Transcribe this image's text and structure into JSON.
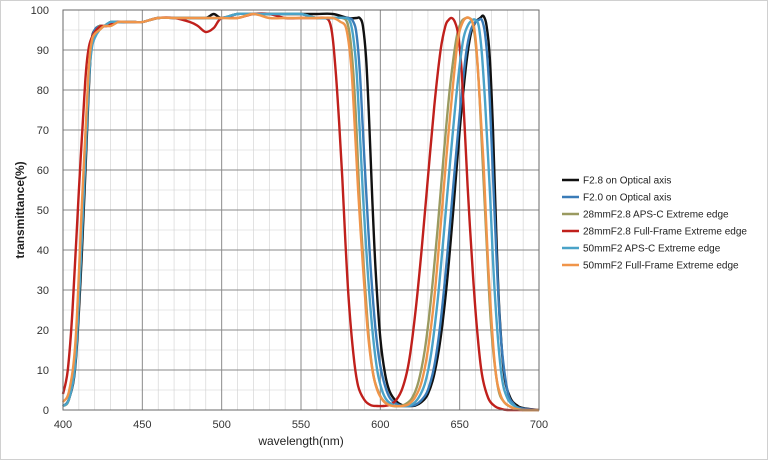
{
  "chart_data": {
    "type": "line",
    "title": "",
    "xlabel": "wavelength(nm)",
    "ylabel": "transmittance(%)",
    "xlim": [
      400,
      700
    ],
    "ylim": [
      0,
      100
    ],
    "x_ticks": [
      400,
      450,
      500,
      550,
      600,
      650,
      700
    ],
    "y_ticks": [
      0,
      10,
      20,
      30,
      40,
      50,
      60,
      70,
      80,
      90,
      100
    ],
    "grid": true,
    "legend_position": "right",
    "series": [
      {
        "name": "F2.8 on Optical axis",
        "color": "#111111",
        "x": [
          400,
          404,
          408,
          412,
          416,
          418,
          420,
          423,
          426,
          430,
          435,
          440,
          445,
          450,
          460,
          470,
          480,
          490,
          495,
          500,
          510,
          520,
          530,
          540,
          550,
          560,
          570,
          580,
          585,
          587,
          589,
          591,
          593,
          595,
          597,
          600,
          603,
          606,
          610,
          614,
          618,
          622,
          626,
          630,
          634,
          638,
          642,
          646,
          650,
          654,
          657,
          660,
          663,
          665,
          667,
          669,
          671,
          673,
          675,
          678,
          682,
          686,
          690,
          700
        ],
        "y": [
          1,
          3,
          12,
          40,
          78,
          92,
          95,
          96,
          96,
          97,
          97,
          97,
          97,
          97,
          98,
          98,
          98,
          98,
          99,
          98,
          99,
          99,
          99,
          99,
          99,
          99,
          99,
          98,
          98,
          98,
          96,
          88,
          72,
          52,
          35,
          18,
          9,
          4.5,
          2.2,
          1.2,
          1,
          1.1,
          2,
          4,
          9,
          18,
          32,
          50,
          70,
          86,
          94,
          97,
          98,
          98.5,
          96,
          88,
          70,
          45,
          25,
          9,
          3,
          1.2,
          0.5,
          0
        ]
      },
      {
        "name": "F2.0 on Optical axis",
        "color": "#3a7cb8",
        "x": [
          400,
          404,
          408,
          412,
          416,
          418,
          420,
          423,
          426,
          430,
          435,
          440,
          445,
          450,
          460,
          470,
          480,
          490,
          500,
          510,
          520,
          530,
          540,
          550,
          560,
          570,
          580,
          583,
          585,
          587,
          589,
          591,
          594,
          597,
          600,
          603,
          606,
          610,
          614,
          618,
          622,
          626,
          630,
          634,
          638,
          642,
          646,
          650,
          654,
          657,
          660,
          662,
          664,
          666,
          668,
          670,
          673,
          676,
          680,
          684,
          688,
          700
        ],
        "y": [
          1,
          3,
          14,
          45,
          82,
          92,
          95,
          96,
          96,
          97,
          97,
          97,
          97,
          97,
          98,
          98,
          98,
          98,
          98,
          99,
          99,
          99,
          99,
          99,
          98,
          98,
          98,
          97,
          94,
          85,
          70,
          55,
          35,
          20,
          11,
          6,
          3,
          1.6,
          1,
          1,
          1.3,
          2.5,
          5,
          11,
          22,
          38,
          56,
          74,
          89,
          95,
          97,
          97.5,
          97.5,
          94,
          85,
          68,
          40,
          18,
          5,
          1.5,
          0.5,
          0
        ]
      },
      {
        "name": "28mmF2.8 APS-C Extreme edge",
        "color": "#9a9a60",
        "x": [
          400,
          404,
          408,
          412,
          416,
          418,
          420,
          423,
          426,
          430,
          435,
          440,
          445,
          450,
          460,
          470,
          480,
          490,
          500,
          510,
          520,
          530,
          540,
          550,
          560,
          570,
          576,
          579,
          581,
          583,
          585,
          587,
          590,
          593,
          596,
          600,
          604,
          608,
          612,
          616,
          620,
          624,
          628,
          632,
          636,
          640,
          644,
          648,
          651,
          654,
          656,
          658,
          660,
          662,
          664,
          667,
          670,
          674,
          678,
          684,
          690,
          700
        ],
        "y": [
          1,
          3,
          15,
          48,
          83,
          92,
          94,
          96,
          96,
          97,
          97,
          97,
          97,
          97,
          98,
          98,
          98,
          98,
          98,
          99,
          99,
          99,
          99,
          99,
          98,
          98,
          98,
          97,
          93,
          84,
          70,
          52,
          33,
          17,
          8,
          3.5,
          1.6,
          1,
          1,
          1.5,
          3,
          7,
          15,
          28,
          45,
          64,
          81,
          93,
          97,
          98,
          98,
          97,
          92,
          82,
          66,
          42,
          20,
          6,
          2,
          0.5,
          0,
          0
        ]
      },
      {
        "name": "28mmF2.8 Full-Frame Extreme edge",
        "color": "#c0201c",
        "x": [
          400,
          403,
          406,
          410,
          414,
          416,
          418,
          421,
          424,
          428,
          433,
          438,
          445,
          450,
          460,
          470,
          480,
          485,
          490,
          495,
          500,
          510,
          520,
          530,
          540,
          550,
          560,
          565,
          568,
          570,
          572,
          574,
          576,
          578,
          580,
          583,
          586,
          590,
          594,
          598,
          602,
          606,
          610,
          614,
          618,
          622,
          626,
          630,
          634,
          638,
          641,
          643,
          645,
          647,
          649,
          651,
          653,
          655,
          658,
          661,
          664,
          668,
          672,
          676,
          680,
          690,
          700
        ],
        "y": [
          4,
          10,
          25,
          55,
          82,
          90,
          93,
          95,
          96,
          96,
          97,
          97,
          97,
          97,
          98,
          98,
          97,
          96,
          94.5,
          95.5,
          98,
          98,
          99,
          99,
          98,
          98,
          98,
          98,
          97,
          93,
          84,
          72,
          58,
          42,
          28,
          14,
          6,
          2.5,
          1.2,
          1,
          1,
          1.3,
          2.5,
          5.5,
          12,
          24,
          40,
          58,
          76,
          90,
          96,
          97.5,
          98,
          97,
          94,
          86,
          72,
          56,
          36,
          20,
          9,
          3,
          1,
          0.3,
          0,
          0,
          0
        ]
      },
      {
        "name": "50mmF2 APS-C Extreme edge",
        "color": "#4aa3c8",
        "x": [
          400,
          404,
          408,
          412,
          416,
          418,
          420,
          423,
          426,
          430,
          435,
          440,
          445,
          450,
          460,
          470,
          480,
          490,
          500,
          510,
          520,
          530,
          540,
          550,
          560,
          570,
          578,
          581,
          583,
          585,
          587,
          589,
          592,
          595,
          598,
          601,
          604,
          608,
          612,
          616,
          620,
          624,
          628,
          632,
          636,
          640,
          644,
          648,
          652,
          655,
          658,
          660,
          662,
          664,
          666,
          669,
          672,
          676,
          680,
          686,
          690,
          700
        ],
        "y": [
          1,
          3,
          13,
          44,
          80,
          90,
          93,
          95,
          96,
          97,
          97,
          97,
          97,
          97,
          98,
          98,
          98,
          98,
          98,
          99,
          99,
          99,
          99,
          99,
          98,
          98,
          98,
          97,
          93,
          85,
          70,
          54,
          35,
          20,
          10,
          5,
          2.5,
          1.3,
          1,
          1,
          1.4,
          3,
          6.5,
          14,
          27,
          44,
          62,
          79,
          92,
          96,
          97.5,
          97.5,
          96,
          89,
          77,
          55,
          30,
          10,
          3,
          0.7,
          0,
          0
        ]
      },
      {
        "name": "50mmF2 Full-Frame Extreme edge",
        "color": "#f0954a",
        "x": [
          400,
          404,
          408,
          412,
          416,
          418,
          420,
          423,
          426,
          430,
          435,
          440,
          445,
          450,
          460,
          470,
          480,
          490,
          500,
          510,
          520,
          530,
          540,
          550,
          560,
          570,
          575,
          578,
          580,
          582,
          584,
          586,
          589,
          592,
          595,
          598,
          602,
          606,
          610,
          614,
          618,
          622,
          626,
          630,
          634,
          638,
          642,
          646,
          649,
          652,
          654,
          656,
          658,
          660,
          662,
          665,
          668,
          672,
          676,
          682,
          690,
          700
        ],
        "y": [
          2,
          5,
          18,
          52,
          84,
          92,
          94,
          95,
          96,
          96,
          97,
          97,
          97,
          97,
          98,
          98,
          98,
          98,
          98,
          98,
          99,
          98,
          98,
          98,
          98,
          98,
          97,
          96,
          92,
          84,
          70,
          55,
          36,
          20,
          10,
          5,
          2.2,
          1.2,
          1,
          1,
          1.5,
          3.2,
          7,
          15,
          28,
          46,
          65,
          82,
          93,
          97,
          98,
          98,
          97,
          93,
          82,
          62,
          36,
          12,
          3.5,
          0.8,
          0,
          0
        ]
      }
    ]
  }
}
